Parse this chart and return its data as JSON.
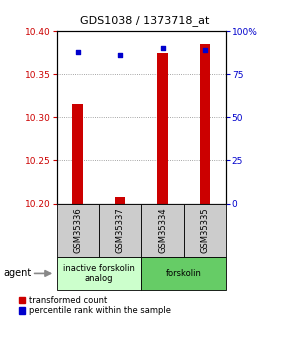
{
  "title": "GDS1038 / 1373718_at",
  "samples": [
    "GSM35336",
    "GSM35337",
    "GSM35334",
    "GSM35335"
  ],
  "red_values": [
    10.315,
    10.208,
    10.375,
    10.385
  ],
  "blue_values": [
    88,
    86,
    90,
    89
  ],
  "ylim_left": [
    10.2,
    10.4
  ],
  "ylim_right": [
    0,
    100
  ],
  "yticks_left": [
    10.2,
    10.25,
    10.3,
    10.35,
    10.4
  ],
  "yticks_right": [
    0,
    25,
    50,
    75,
    100
  ],
  "ytick_right_labels": [
    "0",
    "25",
    "50",
    "75",
    "100%"
  ],
  "groups": [
    {
      "label": "inactive forskolin\nanalog",
      "color": "#ccffcc",
      "span": [
        0,
        2
      ]
    },
    {
      "label": "forskolin",
      "color": "#66cc66",
      "span": [
        2,
        4
      ]
    }
  ],
  "bar_color": "#cc0000",
  "dot_color": "#0000cc",
  "bar_width": 0.25,
  "background_color": "#ffffff",
  "legend_red_label": "transformed count",
  "legend_blue_label": "percentile rank within the sample",
  "agent_label": "agent",
  "left_tick_color": "#cc0000",
  "right_tick_color": "#0000cc",
  "sample_box_color": "#cccccc",
  "title_fontsize": 8,
  "tick_fontsize": 6.5,
  "legend_fontsize": 6,
  "sample_fontsize": 6
}
